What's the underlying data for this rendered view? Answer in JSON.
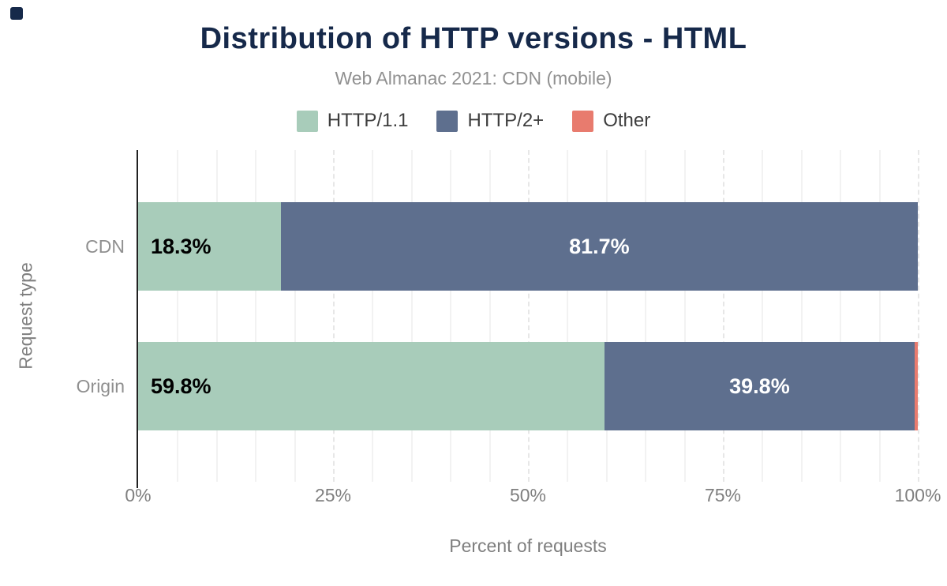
{
  "header": {
    "title": "Distribution of HTTP versions - HTML",
    "subtitle": "Web Almanac 2021: CDN (mobile)"
  },
  "colors": {
    "title_navy": "#16294a",
    "subtitle_gray": "#919191",
    "axis_text_gray": "#7f7f7f",
    "category_gray": "#8f8f8f",
    "axis_line": "#212121",
    "corner_mark": "#16294a",
    "http11_green": "#a8ccba",
    "http2_blue": "#5e6f8e",
    "other_salmon": "#e87b6e"
  },
  "chart_data": {
    "type": "bar",
    "stacked": true,
    "orientation": "horizontal",
    "title": "Distribution of HTTP versions - HTML",
    "subtitle": "Web Almanac 2021: CDN (mobile)",
    "xlabel": "Percent of requests",
    "ylabel": "Request type",
    "categories": [
      "CDN",
      "Origin"
    ],
    "series": [
      {
        "name": "HTTP/1.1",
        "color": "#a8ccba",
        "values": [
          18.3,
          59.8
        ],
        "labels": [
          "18.3%",
          "59.8%"
        ],
        "label_color": "#000000",
        "label_align": "left"
      },
      {
        "name": "HTTP/2+",
        "color": "#5e6f8e",
        "values": [
          81.7,
          39.8
        ],
        "labels": [
          "81.7%",
          "39.8%"
        ],
        "label_color": "#ffffff",
        "label_align": "center"
      },
      {
        "name": "Other",
        "color": "#e87b6e",
        "values": [
          0.0,
          0.4
        ],
        "labels": [
          "",
          ""
        ],
        "label_color": "#ffffff",
        "label_align": "center"
      }
    ],
    "x_ticks": [
      "0%",
      "25%",
      "50%",
      "75%",
      "100%"
    ],
    "x_tick_values": [
      0,
      25,
      50,
      75,
      100
    ],
    "xlim": [
      0,
      100
    ],
    "grid": {
      "minor_step": 5,
      "major_step": 25,
      "vertical": true
    },
    "legend_position": "top"
  }
}
